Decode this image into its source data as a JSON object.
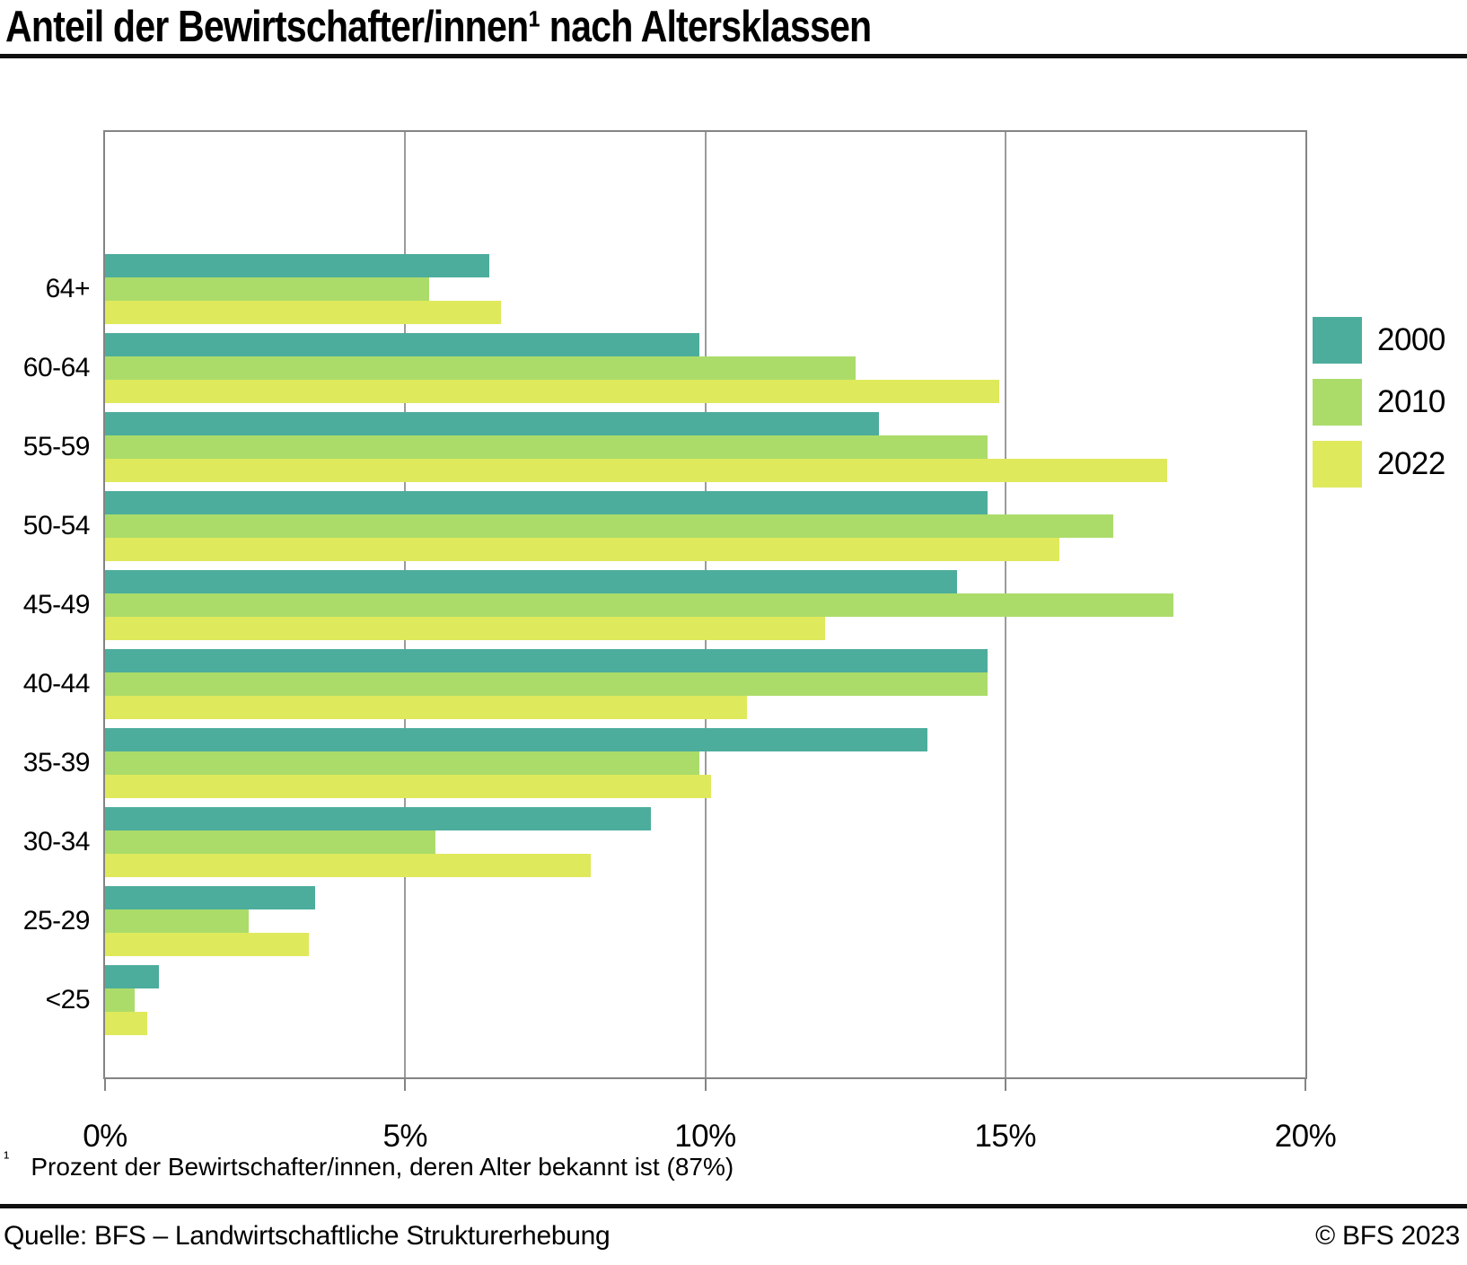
{
  "header": {
    "title": "Anteil der Bewirtschafter/innen¹ nach Altersklassen"
  },
  "chart_data": {
    "type": "bar",
    "orientation": "horizontal",
    "title": "Anteil der Bewirtschafter/innen¹ nach Altersklassen",
    "xlabel": "",
    "ylabel": "",
    "xlim": [
      0,
      20
    ],
    "xticks": [
      "0%",
      "5%",
      "10%",
      "15%",
      "20%"
    ],
    "grid": true,
    "legend_position": "right",
    "categories": [
      "64+",
      "60-64",
      "55-59",
      "50-54",
      "45-49",
      "40-44",
      "35-39",
      "30-34",
      "25-29",
      "<25"
    ],
    "series": [
      {
        "name": "2000",
        "color": "#4dad9c",
        "values": [
          6.4,
          9.9,
          12.9,
          14.7,
          14.2,
          14.7,
          13.7,
          9.1,
          3.5,
          0.9
        ]
      },
      {
        "name": "2010",
        "color": "#abdc6a",
        "values": [
          5.4,
          12.5,
          14.7,
          16.8,
          17.8,
          14.7,
          9.9,
          5.5,
          2.4,
          0.5
        ]
      },
      {
        "name": "2022",
        "color": "#dfe95c",
        "values": [
          6.6,
          14.9,
          17.7,
          15.9,
          12.0,
          10.7,
          10.1,
          8.1,
          3.4,
          0.7
        ]
      }
    ],
    "axis_color": "#848484",
    "grid_color": "#9b9b9b"
  },
  "footnote": {
    "marker": "¹",
    "text": "Prozent der Bewirtschafter/innen, deren Alter bekannt ist (87%)"
  },
  "footer": {
    "source": "Quelle: BFS – Landwirtschaftliche Strukturerhebung",
    "copyright": "© BFS 2023"
  }
}
